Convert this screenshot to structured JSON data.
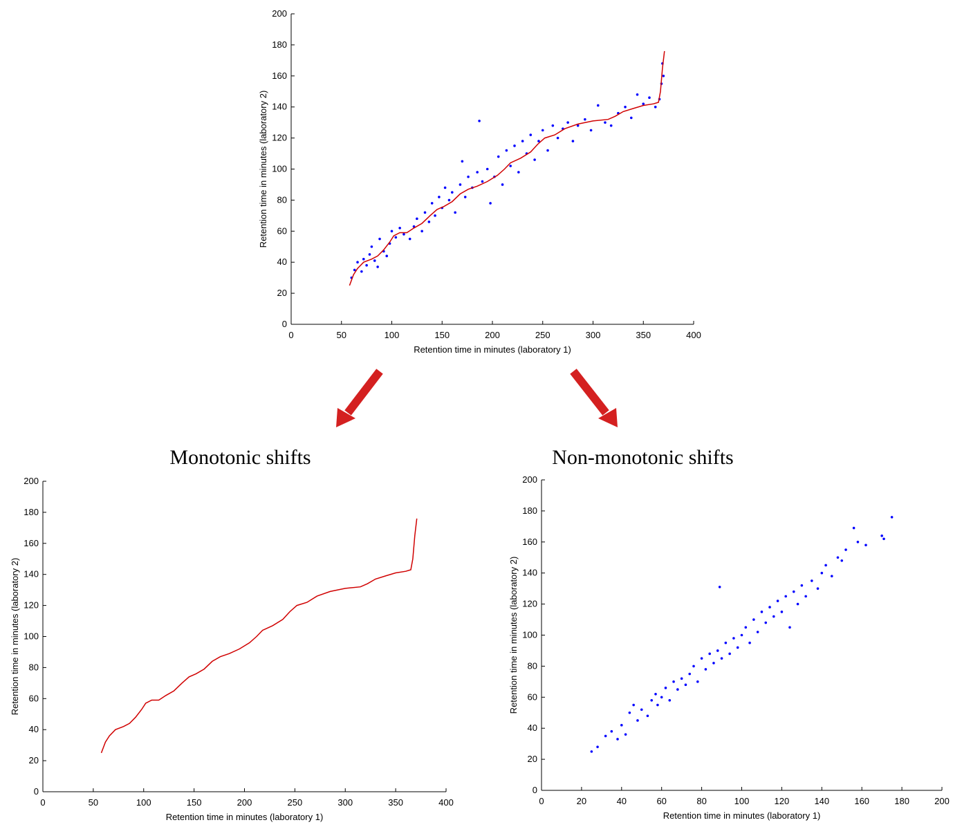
{
  "chart_data": [
    {
      "type": "scatter",
      "xlabel": "Retention time in minutes (laboratory 1)",
      "ylabel": "Retention time in minutes (laboratory 2)",
      "xlim": [
        0,
        400
      ],
      "xticks": [
        0,
        50,
        100,
        150,
        200,
        250,
        300,
        350,
        400
      ],
      "ylim": [
        0,
        200
      ],
      "yticks": [
        0,
        20,
        40,
        60,
        80,
        100,
        120,
        140,
        160,
        180,
        200
      ],
      "series": [
        {
          "kind": "scatter",
          "color": "#0000ff",
          "x": [
            60,
            63,
            66,
            70,
            72,
            75,
            78,
            80,
            83,
            86,
            88,
            92,
            95,
            98,
            100,
            104,
            108,
            112,
            118,
            122,
            125,
            130,
            133,
            137,
            140,
            143,
            147,
            150,
            153,
            157,
            160,
            163,
            168,
            170,
            173,
            176,
            180,
            185,
            187,
            190,
            195,
            198,
            202,
            206,
            210,
            214,
            218,
            222,
            226,
            230,
            234,
            238,
            242,
            246,
            250,
            255,
            260,
            265,
            270,
            275,
            280,
            285,
            292,
            298,
            305,
            312,
            318,
            325,
            332,
            338,
            344,
            350,
            356,
            362,
            366,
            368,
            369,
            370
          ],
          "y": [
            30,
            35,
            40,
            34,
            42,
            38,
            45,
            50,
            41,
            37,
            55,
            47,
            44,
            52,
            60,
            56,
            62,
            58,
            55,
            63,
            68,
            60,
            72,
            66,
            78,
            70,
            82,
            75,
            88,
            80,
            85,
            72,
            90,
            105,
            82,
            95,
            88,
            98,
            131,
            92,
            100,
            78,
            95,
            108,
            90,
            112,
            102,
            115,
            98,
            118,
            110,
            122,
            106,
            118,
            125,
            112,
            128,
            120,
            126,
            130,
            118,
            128,
            132,
            125,
            141,
            130,
            128,
            136,
            140,
            133,
            148,
            142,
            146,
            140,
            145,
            155,
            168,
            160
          ]
        },
        {
          "kind": "line",
          "color": "#d00000",
          "x": [
            58,
            62,
            66,
            72,
            80,
            86,
            92,
            98,
            102,
            108,
            115,
            122,
            130,
            138,
            145,
            152,
            160,
            168,
            176,
            185,
            195,
            205,
            212,
            218,
            228,
            238,
            245,
            252,
            262,
            272,
            285,
            300,
            315,
            322,
            330,
            340,
            350,
            360,
            365,
            367,
            369,
            371
          ],
          "y": [
            25,
            32,
            36,
            40,
            42,
            44,
            48,
            53,
            57,
            59,
            59,
            62,
            65,
            70,
            74,
            76,
            79,
            84,
            87,
            89,
            92,
            96,
            100,
            104,
            107,
            111,
            116,
            120,
            122,
            126,
            129,
            131,
            132,
            134,
            137,
            139,
            141,
            142,
            143,
            150,
            165,
            176
          ]
        }
      ]
    },
    {
      "type": "line",
      "title": "Monotonic shifts",
      "xlabel": "Retention time in minutes (laboratory 1)",
      "ylabel": "Retention time in minutes (laboratory 2)",
      "xlim": [
        0,
        400
      ],
      "xticks": [
        0,
        50,
        100,
        150,
        200,
        250,
        300,
        350,
        400
      ],
      "ylim": [
        0,
        200
      ],
      "yticks": [
        0,
        20,
        40,
        60,
        80,
        100,
        120,
        140,
        160,
        180,
        200
      ],
      "series": [
        {
          "kind": "line",
          "color": "#d00000",
          "x": [
            58,
            62,
            66,
            72,
            80,
            86,
            92,
            98,
            102,
            108,
            115,
            122,
            130,
            138,
            145,
            152,
            160,
            168,
            176,
            185,
            195,
            205,
            212,
            218,
            228,
            238,
            245,
            252,
            262,
            272,
            285,
            300,
            315,
            322,
            330,
            340,
            350,
            360,
            365,
            367,
            369,
            371
          ],
          "y": [
            25,
            32,
            36,
            40,
            42,
            44,
            48,
            53,
            57,
            59,
            59,
            62,
            65,
            70,
            74,
            76,
            79,
            84,
            87,
            89,
            92,
            96,
            100,
            104,
            107,
            111,
            116,
            120,
            122,
            126,
            129,
            131,
            132,
            134,
            137,
            139,
            141,
            142,
            143,
            150,
            165,
            176
          ]
        }
      ]
    },
    {
      "type": "scatter",
      "title": "Non-monotonic shifts",
      "xlabel": "Retention time in minutes (laboratory 1)",
      "ylabel": "Retention time in minutes (laboratory 2)",
      "xlim": [
        0,
        200
      ],
      "xticks": [
        0,
        20,
        40,
        60,
        80,
        100,
        120,
        140,
        160,
        180,
        200
      ],
      "ylim": [
        0,
        200
      ],
      "yticks": [
        0,
        20,
        40,
        60,
        80,
        100,
        120,
        140,
        160,
        180,
        200
      ],
      "series": [
        {
          "kind": "scatter",
          "color": "#0000ff",
          "x": [
            25,
            28,
            32,
            35,
            38,
            40,
            42,
            44,
            46,
            48,
            50,
            53,
            55,
            57,
            58,
            60,
            62,
            64,
            66,
            68,
            70,
            72,
            74,
            76,
            78,
            80,
            82,
            84,
            86,
            88,
            89,
            90,
            92,
            94,
            96,
            98,
            100,
            102,
            104,
            106,
            108,
            110,
            112,
            114,
            116,
            118,
            120,
            122,
            124,
            126,
            128,
            130,
            132,
            135,
            138,
            140,
            142,
            145,
            148,
            150,
            152,
            156,
            158,
            162,
            170,
            171,
            175
          ],
          "y": [
            25,
            28,
            35,
            38,
            33,
            42,
            36,
            50,
            55,
            45,
            52,
            48,
            58,
            62,
            55,
            60,
            66,
            58,
            70,
            65,
            72,
            68,
            75,
            80,
            70,
            85,
            78,
            88,
            82,
            90,
            131,
            85,
            95,
            88,
            98,
            92,
            100,
            105,
            95,
            110,
            102,
            115,
            108,
            118,
            112,
            122,
            115,
            125,
            105,
            128,
            120,
            132,
            125,
            135,
            130,
            140,
            145,
            138,
            150,
            148,
            155,
            169,
            160,
            158,
            164,
            162,
            176
          ]
        }
      ]
    }
  ]
}
